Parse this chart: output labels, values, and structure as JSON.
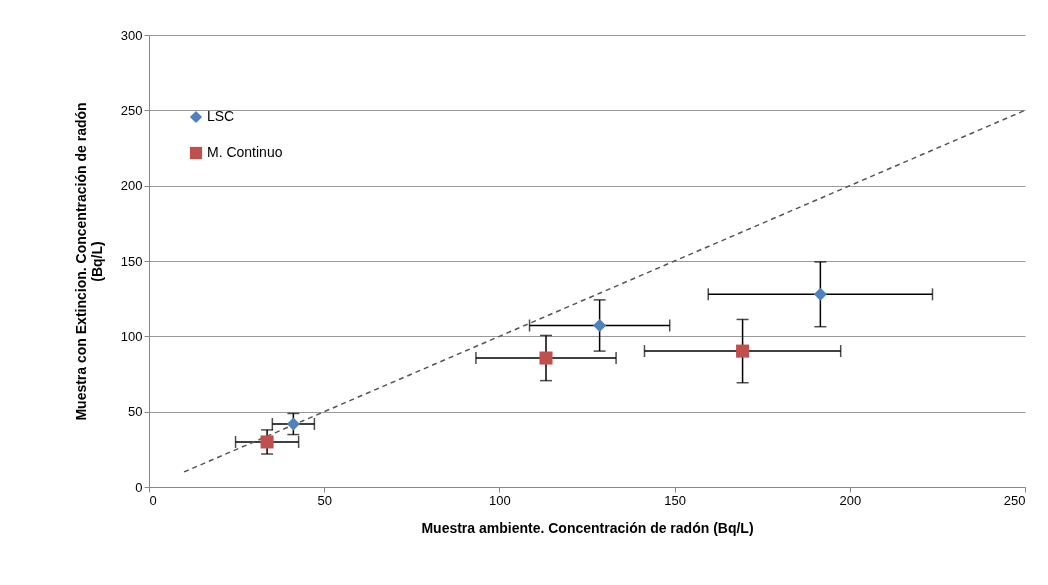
{
  "chart_data": {
    "type": "scatter",
    "xlabel": "Muestra ambiente. Concentración de radón (Bq/L)",
    "ylabel": "Muestra con Extincion. Concentración de radón (Bq/L)",
    "xlim": [
      0,
      250
    ],
    "xticks": [
      0,
      50,
      100,
      150,
      200,
      250
    ],
    "ylim": [
      0,
      300
    ],
    "yticks": [
      0,
      50,
      100,
      150,
      200,
      250,
      300
    ],
    "grid": "y",
    "legend": "top left",
    "series": [
      {
        "name": "LSC",
        "color": "#4f81bd",
        "marker": "diamond",
        "x": [
          41.2,
          128.6,
          191.6
        ],
        "values": [
          41.8,
          107.2,
          127.9
        ],
        "xerrors": [
          6,
          20,
          32
        ],
        "errors": [
          7,
          17,
          21.5
        ]
      },
      {
        "name": "M. Continuo",
        "color": "#c0504d",
        "marker": "square",
        "x": [
          33.7,
          113.3,
          169.4
        ],
        "values": [
          29.9,
          85.6,
          90.2
        ],
        "xerrors": [
          9,
          20,
          28
        ],
        "errors": [
          8,
          15,
          21
        ]
      },
      {
        "type": "line",
        "color": "#555555",
        "line_style": "dashed",
        "x": [
          10,
          50,
          100,
          150,
          200,
          250
        ],
        "values": [
          10,
          50,
          100,
          150,
          200,
          250
        ]
      }
    ]
  }
}
